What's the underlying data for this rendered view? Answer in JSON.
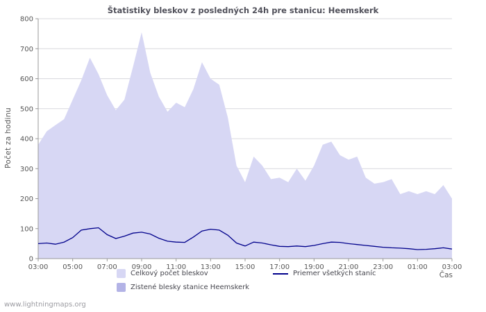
{
  "chart_data": {
    "type": "area",
    "title": "Štatistiky bleskov z posledných 24h pre stanicu: Heemskerk",
    "ylabel": "Počet za hodinu",
    "xlabel": "Čas",
    "ylim": [
      0,
      800
    ],
    "yticks": [
      0,
      100,
      200,
      300,
      400,
      500,
      600,
      700,
      800
    ],
    "x_tick_labels": [
      "03:00",
      "05:00",
      "07:00",
      "09:00",
      "11:00",
      "13:00",
      "15:00",
      "17:00",
      "19:00",
      "21:00",
      "23:00",
      "01:00",
      "03:00"
    ],
    "x_step_minutes": 30,
    "grid": true,
    "legend_position": "bottom",
    "series": [
      {
        "name": "Celkový počet bleskov",
        "type": "area",
        "color": "#d7d7f4",
        "values": [
          380,
          425,
          445,
          465,
          530,
          595,
          670,
          615,
          545,
          495,
          530,
          640,
          755,
          620,
          540,
          490,
          520,
          505,
          565,
          655,
          600,
          580,
          470,
          310,
          255,
          340,
          310,
          265,
          270,
          255,
          300,
          260,
          310,
          380,
          390,
          345,
          330,
          340,
          270,
          250,
          255,
          265,
          215,
          225,
          215,
          225,
          215,
          245,
          200
        ]
      },
      {
        "name": "Zistené blesky stanice Heemskerk",
        "type": "area",
        "color": "#b3b3e6",
        "values": []
      },
      {
        "name": "Priemer všetkých staníc",
        "type": "line",
        "color": "#00008b",
        "values": [
          50,
          52,
          48,
          55,
          70,
          95,
          100,
          103,
          80,
          67,
          75,
          85,
          88,
          82,
          68,
          58,
          55,
          54,
          72,
          92,
          98,
          95,
          78,
          52,
          42,
          55,
          52,
          46,
          41,
          40,
          42,
          40,
          44,
          50,
          55,
          54,
          50,
          47,
          44,
          41,
          38,
          36,
          35,
          33,
          30,
          31,
          33,
          36,
          32
        ]
      }
    ]
  },
  "footer": {
    "watermark": "www.lightningmaps.org"
  }
}
